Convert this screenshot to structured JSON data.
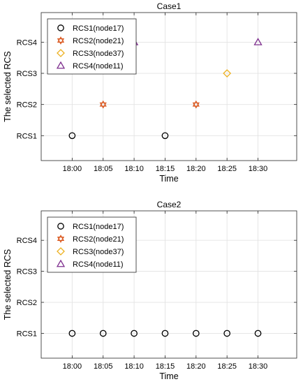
{
  "chart_data": [
    {
      "type": "scatter",
      "title": "Case1",
      "xlabel": "Time",
      "ylabel": "The selected RCS",
      "x_ticks": [
        "18:00",
        "18:05",
        "18:10",
        "18:15",
        "18:20",
        "18:25",
        "18:30"
      ],
      "y_ticks": [
        "RCS1",
        "RCS2",
        "RCS3",
        "RCS4"
      ],
      "xlim": [
        -1.0,
        7.25
      ],
      "ylim": [
        0.2,
        4.95
      ],
      "grid": true,
      "legend_position": "top-left",
      "series": [
        {
          "name": "RCS1(node17)",
          "marker": "circle",
          "color": "#000000",
          "points": [
            {
              "x": "18:00",
              "y": "RCS1"
            },
            {
              "x": "18:15",
              "y": "RCS1"
            }
          ]
        },
        {
          "name": "RCS2(node21)",
          "marker": "hexagram",
          "color": "#D95319",
          "points": [
            {
              "x": "18:05",
              "y": "RCS2"
            },
            {
              "x": "18:20",
              "y": "RCS2"
            }
          ]
        },
        {
          "name": "RCS3(node37)",
          "marker": "diamond",
          "color": "#EDB120",
          "points": [
            {
              "x": "18:25",
              "y": "RCS3"
            }
          ]
        },
        {
          "name": "RCS4(node11)",
          "marker": "triangle",
          "color": "#7E2F8E",
          "points": [
            {
              "x": "18:10",
              "y": "RCS4"
            },
            {
              "x": "18:30",
              "y": "RCS4"
            }
          ]
        }
      ]
    },
    {
      "type": "scatter",
      "title": "Case2",
      "xlabel": "Time",
      "ylabel": "The selected RCS",
      "x_ticks": [
        "18:00",
        "18:05",
        "18:10",
        "18:15",
        "18:20",
        "18:25",
        "18:30"
      ],
      "y_ticks": [
        "RCS1",
        "RCS2",
        "RCS3",
        "RCS4"
      ],
      "xlim": [
        -1.0,
        7.25
      ],
      "ylim": [
        0.2,
        4.95
      ],
      "grid": true,
      "legend_position": "top-left",
      "series": [
        {
          "name": "RCS1(node17)",
          "marker": "circle",
          "color": "#000000",
          "points": [
            {
              "x": "18:00",
              "y": "RCS1"
            },
            {
              "x": "18:05",
              "y": "RCS1"
            },
            {
              "x": "18:10",
              "y": "RCS1"
            },
            {
              "x": "18:15",
              "y": "RCS1"
            },
            {
              "x": "18:20",
              "y": "RCS1"
            },
            {
              "x": "18:25",
              "y": "RCS1"
            },
            {
              "x": "18:30",
              "y": "RCS1"
            }
          ]
        },
        {
          "name": "RCS2(node21)",
          "marker": "hexagram",
          "color": "#D95319",
          "points": []
        },
        {
          "name": "RCS3(node37)",
          "marker": "diamond",
          "color": "#EDB120",
          "points": []
        },
        {
          "name": "RCS4(node11)",
          "marker": "triangle",
          "color": "#7E2F8E",
          "points": []
        }
      ]
    }
  ]
}
